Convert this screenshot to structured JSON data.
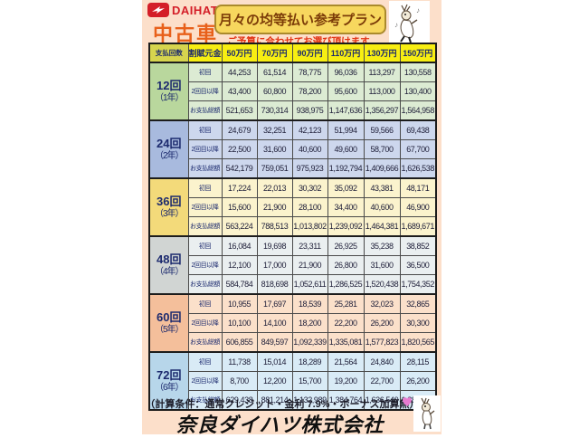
{
  "brand": {
    "logo_text": "DAIHATSU",
    "category": "中古車"
  },
  "header": {
    "title": "月々の均等払い参考プラン",
    "subtitle": "ご予算に合わせてお選び頂けます"
  },
  "table": {
    "col_headers": [
      "支払回数",
      "割賦元金",
      "50万円",
      "70万円",
      "90万円",
      "110万円",
      "130万円",
      "150万円"
    ],
    "row_labels": [
      "初回",
      "2回目以降",
      "お支払総額"
    ],
    "blocks": [
      {
        "period": "12回",
        "years": "（1年）",
        "label_bg": "#b9d79d",
        "row_bg": "#dcebd3",
        "rows": [
          [
            "44,253",
            "61,514",
            "78,775",
            "96,036",
            "113,297",
            "130,558"
          ],
          [
            "43,400",
            "60,800",
            "78,200",
            "95,600",
            "113,000",
            "130,400"
          ],
          [
            "521,653",
            "730,314",
            "938,975",
            "1,147,636",
            "1,356,297",
            "1,564,958"
          ]
        ]
      },
      {
        "period": "24回",
        "years": "（2年）",
        "label_bg": "#a8bade",
        "row_bg": "#cdd7ed",
        "rows": [
          [
            "24,679",
            "32,251",
            "42,123",
            "51,994",
            "59,566",
            "69,438"
          ],
          [
            "22,500",
            "31,600",
            "40,600",
            "49,600",
            "58,700",
            "67,700"
          ],
          [
            "542,179",
            "759,051",
            "975,923",
            "1,192,794",
            "1,409,666",
            "1,626,538"
          ]
        ]
      },
      {
        "period": "36回",
        "years": "（3年）",
        "label_bg": "#f3da7a",
        "row_bg": "#fbf3cd",
        "rows": [
          [
            "17,224",
            "22,013",
            "30,302",
            "35,092",
            "43,381",
            "48,171"
          ],
          [
            "15,600",
            "21,900",
            "28,100",
            "34,400",
            "40,600",
            "46,900"
          ],
          [
            "563,224",
            "788,513",
            "1,013,802",
            "1,239,092",
            "1,464,381",
            "1,689,671"
          ]
        ]
      },
      {
        "period": "48回",
        "years": "（4年）",
        "label_bg": "#d1d5d3",
        "row_bg": "#eaeff0",
        "rows": [
          [
            "16,084",
            "19,698",
            "23,311",
            "26,925",
            "35,238",
            "38,852"
          ],
          [
            "12,100",
            "17,000",
            "21,900",
            "26,800",
            "31,600",
            "36,500"
          ],
          [
            "584,784",
            "818,698",
            "1,052,611",
            "1,286,525",
            "1,520,438",
            "1,754,352"
          ]
        ]
      },
      {
        "period": "60回",
        "years": "（5年）",
        "label_bg": "#f4bf9b",
        "row_bg": "#fbe0ca",
        "rows": [
          [
            "10,955",
            "17,697",
            "18,539",
            "25,281",
            "32,023",
            "32,865"
          ],
          [
            "10,100",
            "14,100",
            "18,200",
            "22,200",
            "26,200",
            "30,300"
          ],
          [
            "606,855",
            "849,597",
            "1,092,339",
            "1,335,081",
            "1,577,823",
            "1,820,565"
          ]
        ]
      },
      {
        "period": "72回",
        "years": "（6年）",
        "label_bg": "#b7d6ea",
        "row_bg": "#d9ebf6",
        "rows": [
          [
            "11,738",
            "15,014",
            "18,289",
            "21,564",
            "24,840",
            "28,115"
          ],
          [
            "8,700",
            "12,200",
            "15,700",
            "19,200",
            "22,700",
            "26,200"
          ],
          [
            "629,438",
            "881,214",
            "1,132,989",
            "1,384,764",
            "1,636,540",
            "1,888,315"
          ]
        ]
      }
    ]
  },
  "footer": {
    "conditions": "（計算条件：通常クレジット・金利 7.9%・ボーナス加算無）",
    "company": "奈良ダイハツ株式会社"
  },
  "colors": {
    "flyer_bg": "#fcdfca",
    "brand_red": "#d41e28",
    "category_orange": "#e8601a",
    "title_bg": "#f7d75e",
    "title_text": "#7c3c08",
    "subtitle_red": "#e23212",
    "header_yellow": "#f7ee12",
    "navy_text": "#1c2a6e",
    "heart_pink": "#e87bd0"
  }
}
